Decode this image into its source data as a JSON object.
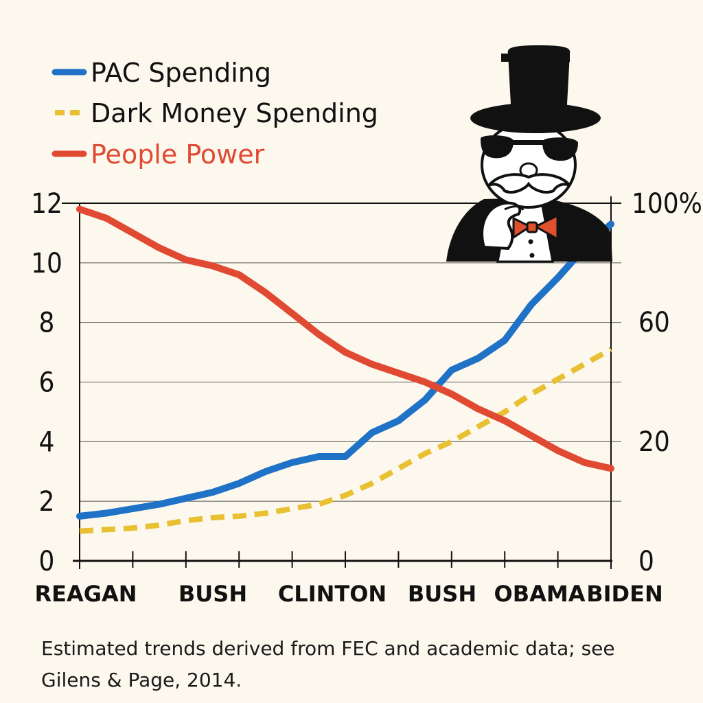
{
  "legend": [
    {
      "label": "PAC Spending",
      "color": "#1f72c6",
      "style": "solid"
    },
    {
      "label": "Dark Money Spending",
      "color": "#e8c032",
      "style": "dashed"
    },
    {
      "label": "People Power",
      "color": "#e04a32",
      "style": "solid"
    }
  ],
  "caption": "Estimated trends derived from FEC and academic data; see Gilens & Page, 2014.",
  "illustration": "monopoly-man-icon",
  "chart_data": {
    "type": "line",
    "xlabels": [
      "REAGAN",
      "BUSH",
      "CLINTON",
      "BUSH",
      "OBAMA",
      "BIDEN"
    ],
    "x": [
      0,
      1,
      2,
      3,
      4,
      5,
      6,
      7,
      8,
      9,
      10,
      11,
      12,
      13,
      14,
      15,
      16,
      17,
      18,
      19,
      20
    ],
    "xlim": [
      0,
      20
    ],
    "y_left": {
      "ticks": [
        "0",
        "2",
        "4",
        "6",
        "8",
        "10",
        "12"
      ],
      "ylim": [
        0,
        12
      ]
    },
    "y_right": {
      "ticks": [
        "0",
        "20",
        "60",
        "100%"
      ]
    },
    "grid": true,
    "series": [
      {
        "name": "PAC Spending",
        "axis": "left",
        "color": "#1f72c6",
        "style": "solid",
        "values": [
          1.5,
          1.6,
          1.75,
          1.9,
          2.1,
          2.3,
          2.6,
          3.0,
          3.3,
          3.5,
          3.5,
          4.3,
          4.7,
          5.4,
          6.4,
          6.8,
          7.4,
          8.6,
          9.5,
          10.5,
          11.3
        ]
      },
      {
        "name": "Dark Money Spending",
        "axis": "left",
        "color": "#e8c032",
        "style": "dashed",
        "values": [
          1.0,
          1.05,
          1.1,
          1.2,
          1.35,
          1.45,
          1.5,
          1.6,
          1.75,
          1.9,
          2.2,
          2.6,
          3.1,
          3.6,
          4.0,
          4.5,
          5.0,
          5.6,
          6.1,
          6.6,
          7.1
        ]
      },
      {
        "name": "People Power",
        "axis": "left",
        "color": "#e04a32",
        "style": "solid",
        "values": [
          11.8,
          11.5,
          11.0,
          10.5,
          10.1,
          9.9,
          9.6,
          9.0,
          8.3,
          7.6,
          7.0,
          6.6,
          6.3,
          6.0,
          5.6,
          5.1,
          4.7,
          4.2,
          3.7,
          3.3,
          3.1
        ]
      }
    ]
  }
}
